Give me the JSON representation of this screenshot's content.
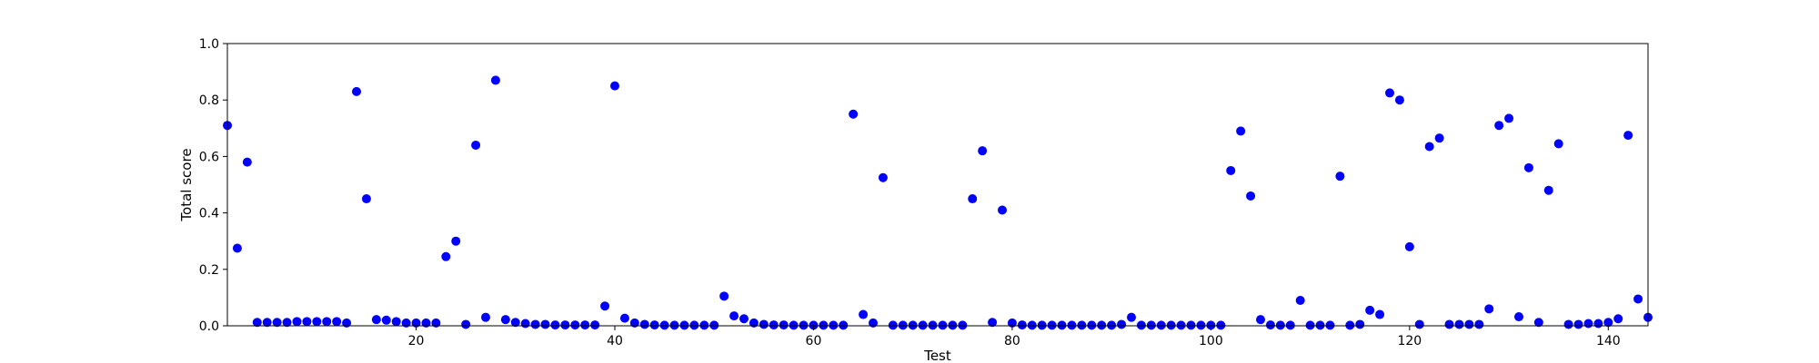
{
  "chart_data": {
    "type": "scatter",
    "xlabel": "Test",
    "ylabel": "Total score",
    "xlim": [
      1,
      144
    ],
    "ylim": [
      0,
      1
    ],
    "xticks": [
      20,
      40,
      60,
      80,
      100,
      120,
      140
    ],
    "yticks": [
      0.0,
      0.2,
      0.4,
      0.6,
      0.8,
      1.0
    ],
    "ytick_labels": [
      "0.0",
      "0.2",
      "0.4",
      "0.6",
      "0.8",
      "1.0"
    ],
    "grid": false,
    "marker_color": "#0000ff",
    "points": [
      [
        1,
        0.71
      ],
      [
        2,
        0.275
      ],
      [
        3,
        0.58
      ],
      [
        4,
        0.012
      ],
      [
        5,
        0.012
      ],
      [
        6,
        0.012
      ],
      [
        7,
        0.012
      ],
      [
        8,
        0.015
      ],
      [
        9,
        0.015
      ],
      [
        10,
        0.015
      ],
      [
        11,
        0.015
      ],
      [
        12,
        0.015
      ],
      [
        13,
        0.01
      ],
      [
        14,
        0.83
      ],
      [
        15,
        0.45
      ],
      [
        16,
        0.022
      ],
      [
        17,
        0.02
      ],
      [
        18,
        0.015
      ],
      [
        19,
        0.01
      ],
      [
        20,
        0.01
      ],
      [
        21,
        0.01
      ],
      [
        22,
        0.01
      ],
      [
        23,
        0.245
      ],
      [
        24,
        0.3
      ],
      [
        25,
        0.005
      ],
      [
        26,
        0.64
      ],
      [
        27,
        0.03
      ],
      [
        28,
        0.87
      ],
      [
        29,
        0.022
      ],
      [
        30,
        0.012
      ],
      [
        31,
        0.008
      ],
      [
        32,
        0.005
      ],
      [
        33,
        0.005
      ],
      [
        34,
        0.003
      ],
      [
        35,
        0.003
      ],
      [
        36,
        0.003
      ],
      [
        37,
        0.003
      ],
      [
        38,
        0.003
      ],
      [
        39,
        0.07
      ],
      [
        40,
        0.85
      ],
      [
        41,
        0.027
      ],
      [
        42,
        0.01
      ],
      [
        43,
        0.005
      ],
      [
        44,
        0.003
      ],
      [
        45,
        0.002
      ],
      [
        46,
        0.002
      ],
      [
        47,
        0.002
      ],
      [
        48,
        0.002
      ],
      [
        49,
        0.002
      ],
      [
        50,
        0.002
      ],
      [
        51,
        0.105
      ],
      [
        52,
        0.035
      ],
      [
        53,
        0.025
      ],
      [
        54,
        0.01
      ],
      [
        55,
        0.005
      ],
      [
        56,
        0.003
      ],
      [
        57,
        0.003
      ],
      [
        58,
        0.002
      ],
      [
        59,
        0.002
      ],
      [
        60,
        0.002
      ],
      [
        61,
        0.002
      ],
      [
        62,
        0.002
      ],
      [
        63,
        0.002
      ],
      [
        64,
        0.75
      ],
      [
        65,
        0.04
      ],
      [
        66,
        0.01
      ],
      [
        67,
        0.525
      ],
      [
        68,
        0.002
      ],
      [
        69,
        0.002
      ],
      [
        70,
        0.002
      ],
      [
        71,
        0.002
      ],
      [
        72,
        0.002
      ],
      [
        73,
        0.002
      ],
      [
        74,
        0.002
      ],
      [
        75,
        0.002
      ],
      [
        76,
        0.45
      ],
      [
        77,
        0.62
      ],
      [
        78,
        0.012
      ],
      [
        79,
        0.41
      ],
      [
        80,
        0.01
      ],
      [
        81,
        0.003
      ],
      [
        82,
        0.002
      ],
      [
        83,
        0.002
      ],
      [
        84,
        0.002
      ],
      [
        85,
        0.002
      ],
      [
        86,
        0.002
      ],
      [
        87,
        0.002
      ],
      [
        88,
        0.002
      ],
      [
        89,
        0.002
      ],
      [
        90,
        0.002
      ],
      [
        91,
        0.005
      ],
      [
        92,
        0.03
      ],
      [
        93,
        0.002
      ],
      [
        94,
        0.002
      ],
      [
        95,
        0.002
      ],
      [
        96,
        0.002
      ],
      [
        97,
        0.002
      ],
      [
        98,
        0.002
      ],
      [
        99,
        0.002
      ],
      [
        100,
        0.002
      ],
      [
        101,
        0.002
      ],
      [
        102,
        0.55
      ],
      [
        103,
        0.69
      ],
      [
        104,
        0.46
      ],
      [
        105,
        0.022
      ],
      [
        106,
        0.003
      ],
      [
        107,
        0.002
      ],
      [
        108,
        0.002
      ],
      [
        109,
        0.09
      ],
      [
        110,
        0.002
      ],
      [
        111,
        0.002
      ],
      [
        112,
        0.002
      ],
      [
        113,
        0.53
      ],
      [
        114,
        0.002
      ],
      [
        115,
        0.005
      ],
      [
        116,
        0.055
      ],
      [
        117,
        0.04
      ],
      [
        118,
        0.825
      ],
      [
        119,
        0.8
      ],
      [
        120,
        0.28
      ],
      [
        121,
        0.005
      ],
      [
        122,
        0.635
      ],
      [
        123,
        0.665
      ],
      [
        124,
        0.005
      ],
      [
        125,
        0.005
      ],
      [
        126,
        0.005
      ],
      [
        127,
        0.005
      ],
      [
        128,
        0.06
      ],
      [
        129,
        0.71
      ],
      [
        130,
        0.735
      ],
      [
        131,
        0.032
      ],
      [
        132,
        0.56
      ],
      [
        133,
        0.012
      ],
      [
        134,
        0.48
      ],
      [
        135,
        0.645
      ],
      [
        136,
        0.005
      ],
      [
        137,
        0.005
      ],
      [
        138,
        0.008
      ],
      [
        139,
        0.008
      ],
      [
        140,
        0.012
      ],
      [
        141,
        0.025
      ],
      [
        142,
        0.675
      ],
      [
        143,
        0.095
      ],
      [
        144,
        0.03
      ]
    ]
  }
}
